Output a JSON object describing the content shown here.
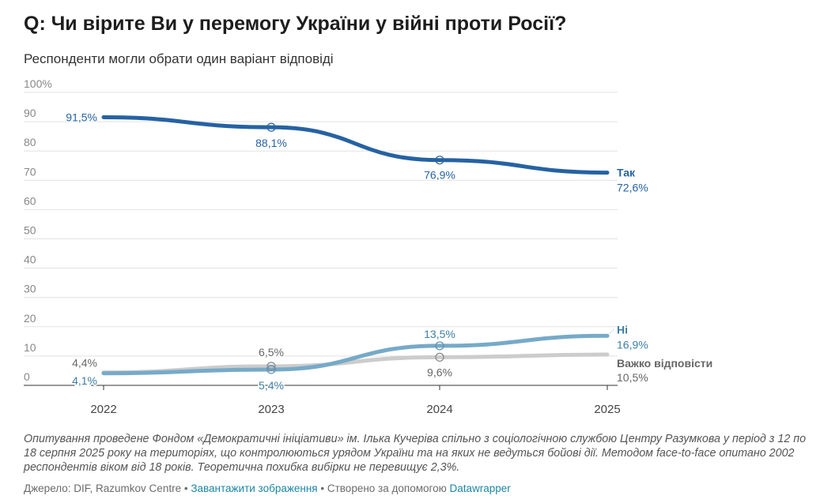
{
  "title": "Q: Чи вірите Ви у перемогу України у війні проти Росії?",
  "subtitle": "Респонденти могли обрати один варіант відповіді",
  "notes": "Опитування проведене Фондом «Демократичні ініціативи» ім. Ілька Кучеріва спільно з соціологічною службою Центру Разумкова у період з 12 по 18 серпня 2025 року на територіях, що контролюються урядом України та на яких не ведуться бойові дії. Методом face-to-face опитано 2002 респондентів віком від 18 років. Теоретична похибка вибірки не перевищує 2,3%.",
  "footer": {
    "source": "Джерело: DIF, Razumkov Centre",
    "sep1": " • ",
    "download": "Завантажити зображення",
    "sep2": " • Створено за допомогою ",
    "made_with": "Datawrapper"
  },
  "chart_data": {
    "type": "line",
    "x": [
      "2022",
      "2023",
      "2024",
      "2025"
    ],
    "ylim": [
      0,
      100
    ],
    "yticks": [
      "100%",
      "90",
      "80",
      "70",
      "60",
      "50",
      "40",
      "30",
      "20",
      "10",
      "0"
    ],
    "grid": true,
    "series": [
      {
        "name": "Так",
        "values": [
          91.5,
          88.1,
          76.9,
          72.6
        ],
        "labels": [
          "91,5%",
          "88,1%",
          "76,9%",
          "72,6%"
        ],
        "color": "#2662a3"
      },
      {
        "name": "Ні",
        "values": [
          4.1,
          5.4,
          13.5,
          16.9
        ],
        "labels": [
          "4,1%",
          "5,4%",
          "13,5%",
          "16,9%"
        ],
        "color": "#76aac8"
      },
      {
        "name": "Важко відповісти",
        "values": [
          4.4,
          6.5,
          9.6,
          10.5
        ],
        "labels": [
          "4,4%",
          "6,5%",
          "9,6%",
          "10,5%"
        ],
        "color": "#cccccc"
      }
    ]
  }
}
